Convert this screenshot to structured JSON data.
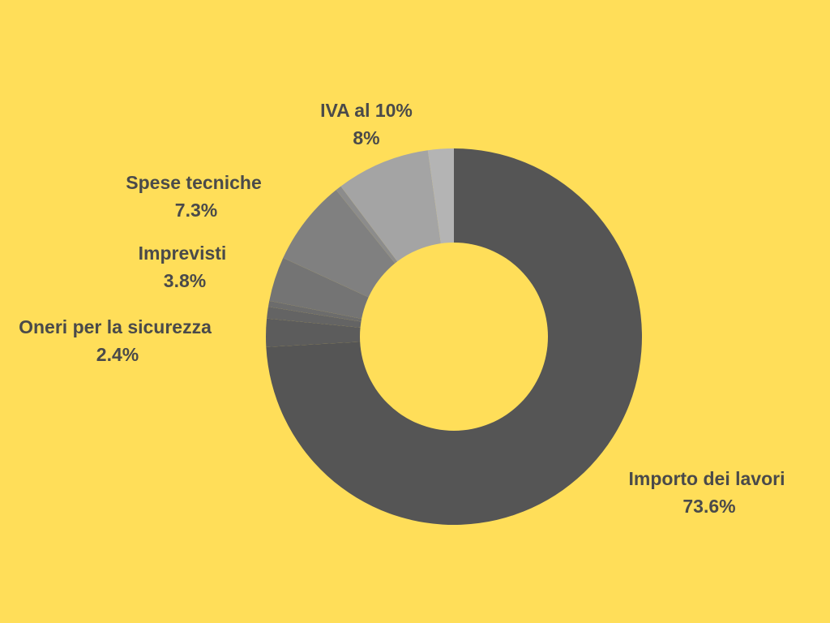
{
  "colors": {
    "background": "#FFDE59",
    "label_text": "#4A4A4A",
    "hole": "#FFDE59"
  },
  "chart_data": {
    "type": "pie",
    "subtype": "donut",
    "categories": [
      "Importo dei lavori",
      "Oneri per la sicurezza",
      "",
      "",
      "Imprevisti",
      "Spese tecniche",
      "",
      "IVA al 10%",
      ""
    ],
    "values": [
      73.6,
      2.4,
      1.0,
      0.5,
      3.8,
      7.3,
      0.5,
      8.0,
      2.2
    ],
    "colors": [
      "#555555",
      "#5C5C5C",
      "#646464",
      "#6C6C6C",
      "#747474",
      "#808080",
      "#8C8C8C",
      "#A4A4A4",
      "#B4B4B4"
    ],
    "labels": [
      {
        "index": 0,
        "name": "Importo dei lavori",
        "percent": "73.6%"
      },
      {
        "index": 1,
        "name": "Oneri per la sicurezza",
        "percent": "2.4%"
      },
      {
        "index": 4,
        "name": "Imprevisti",
        "percent": "3.8%"
      },
      {
        "index": 5,
        "name": "Spese tecniche",
        "percent": "7.3%"
      },
      {
        "index": 7,
        "name": "IVA al 10%",
        "percent": "8%"
      }
    ],
    "start_angle": "12 o'clock",
    "direction": "clockwise",
    "legend": "none",
    "title": ""
  }
}
